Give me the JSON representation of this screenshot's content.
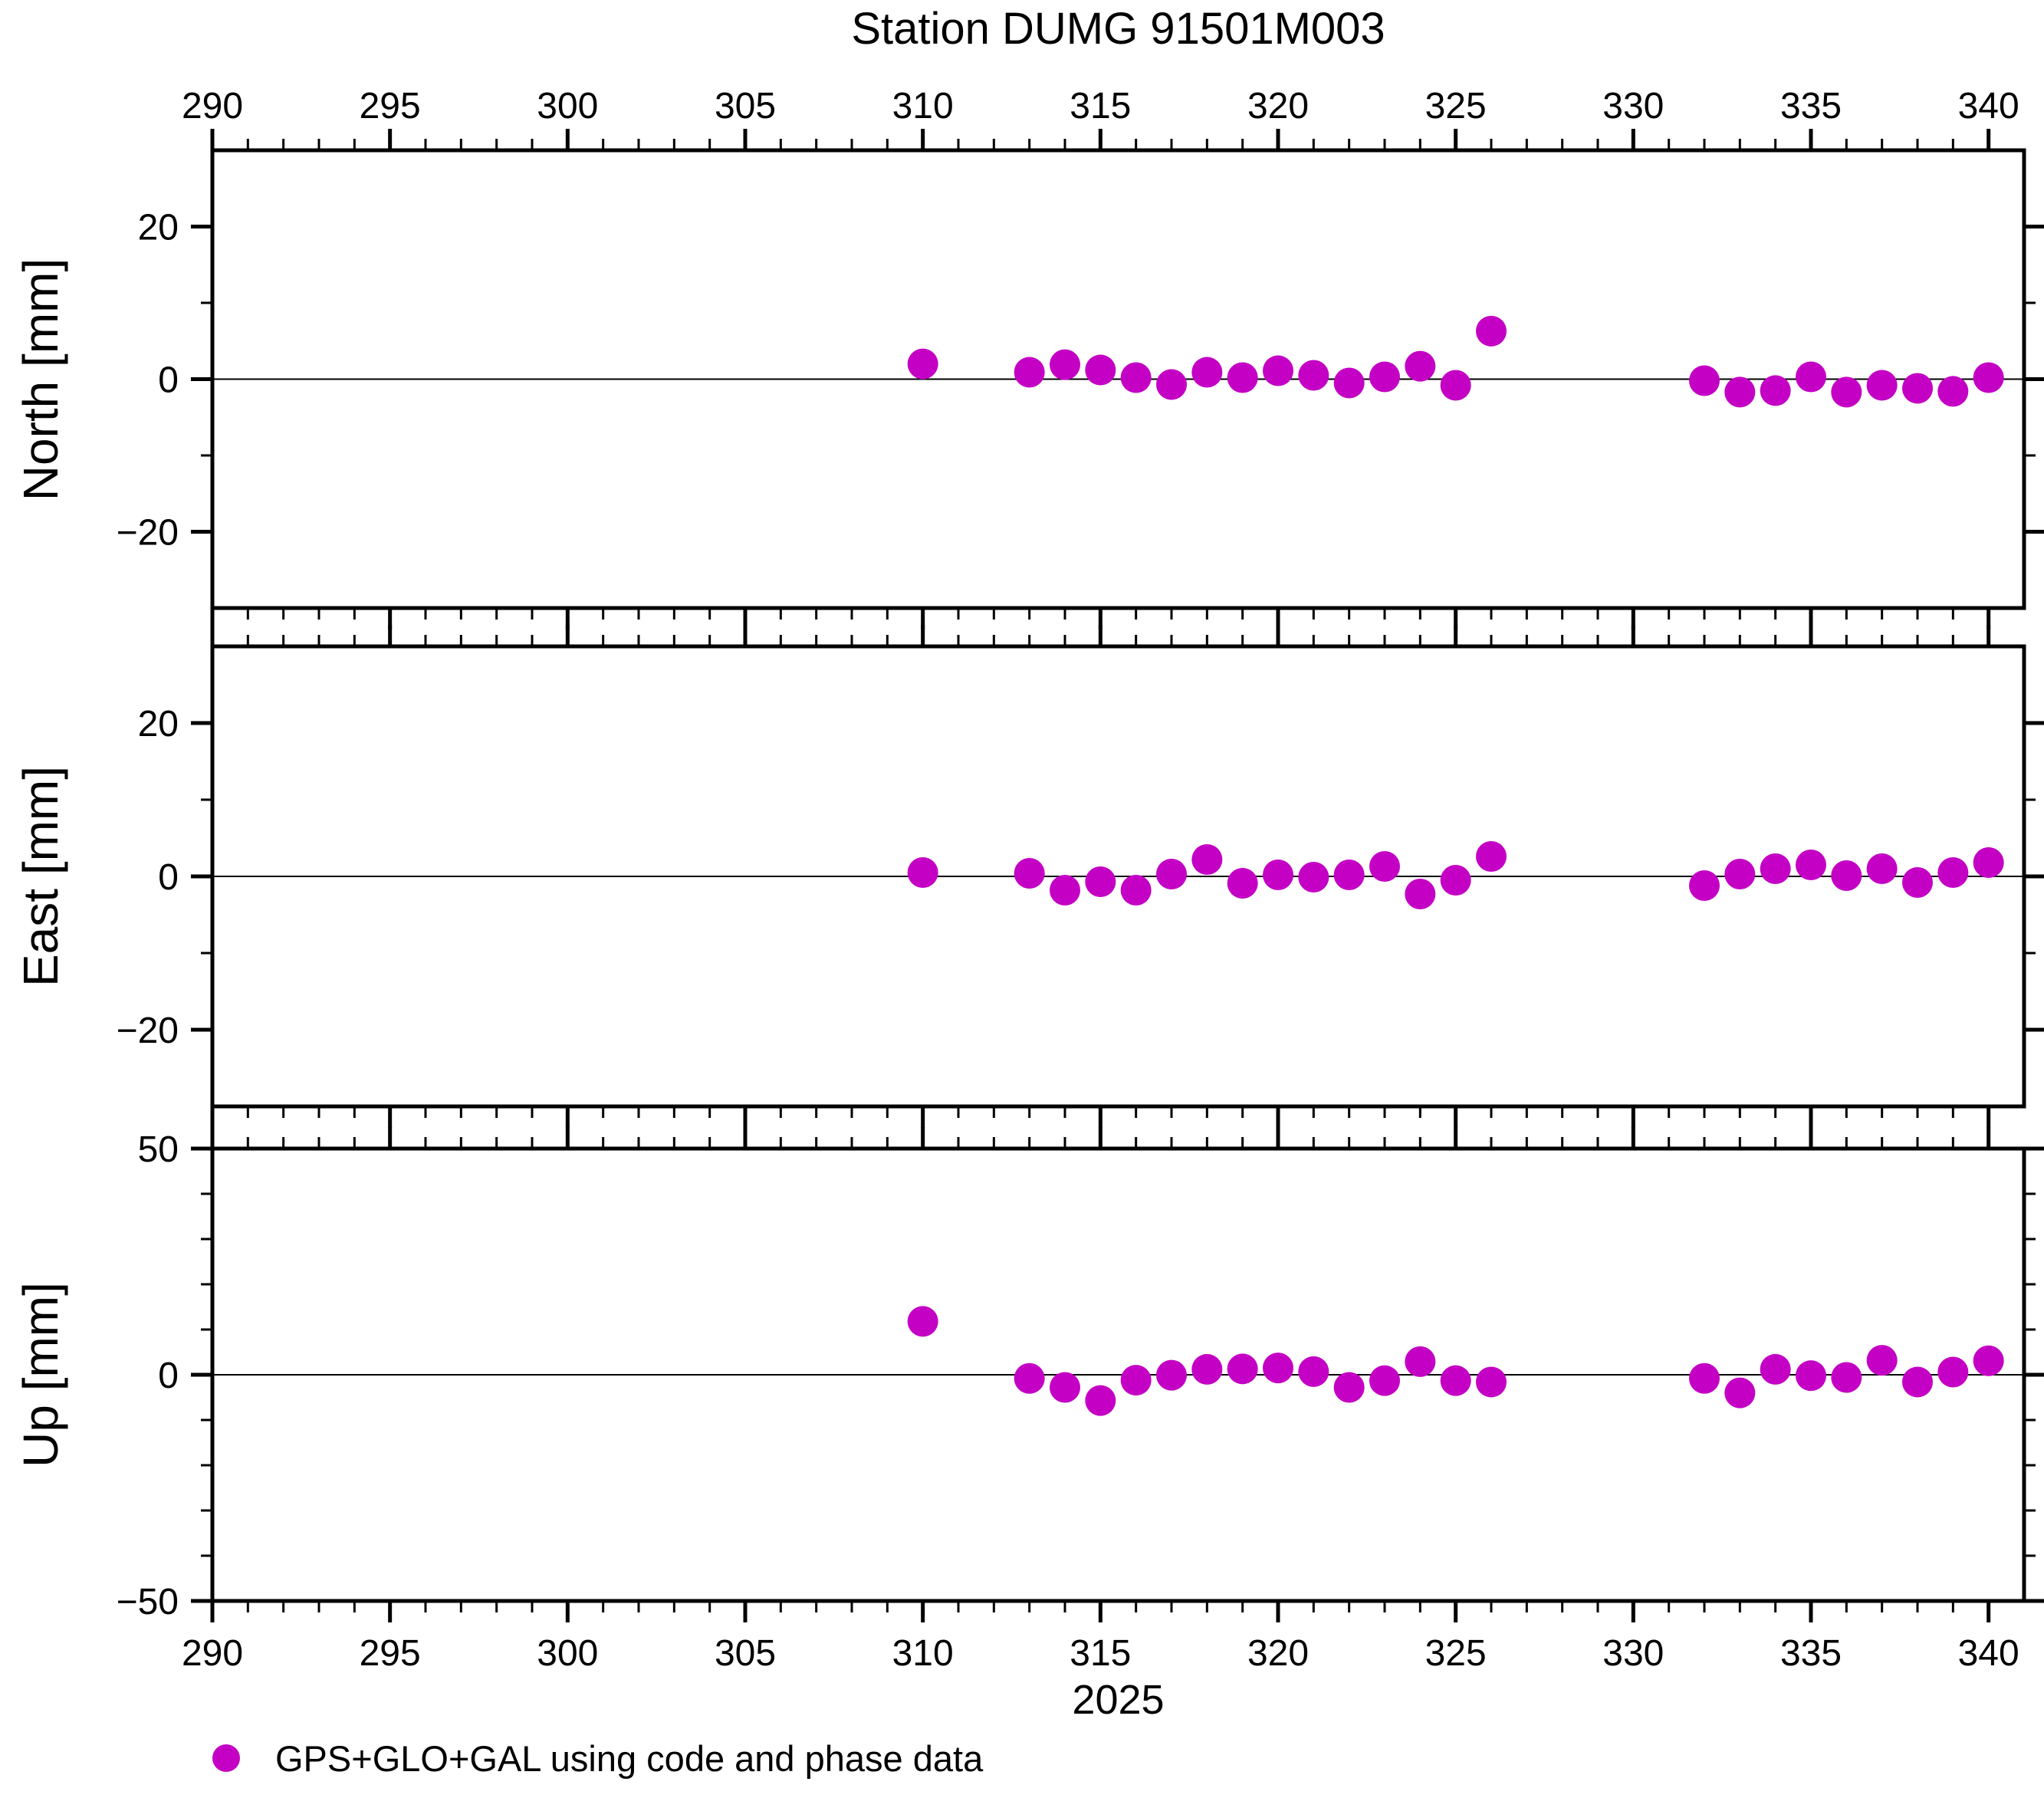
{
  "title": "Station DUMG 91501M003",
  "year_label": "2025",
  "legend": {
    "marker_color": "#C400C4",
    "label": "GPS+GLO+GAL using code and phase data"
  },
  "chart_data": {
    "type": "scatter",
    "title": "Station DUMG 91501M003",
    "xlabel": "2025",
    "x_units": "day of year",
    "xlim": [
      290,
      341
    ],
    "x_major_ticks": [
      290,
      295,
      300,
      305,
      310,
      315,
      320,
      325,
      330,
      335,
      340
    ],
    "x_minor_tick_step": 1,
    "grid": "zero-line-only",
    "legend_position": "bottom-left",
    "marker": {
      "shape": "circle",
      "color": "#C400C4",
      "radius_px": 20
    },
    "x": [
      310,
      313,
      314,
      315,
      316,
      317,
      318,
      319,
      320,
      321,
      322,
      323,
      324,
      325,
      326,
      332,
      333,
      334,
      335,
      336,
      337,
      338,
      339,
      340
    ],
    "panels": [
      {
        "ylabel": "North [mm]",
        "ylim": [
          -30,
          30
        ],
        "y_major_ticks": [
          -20,
          0,
          20
        ],
        "y_minor_tick_step": 10,
        "series_name": "GPS+GLO+GAL using code and phase data",
        "values": [
          2.0,
          0.9,
          1.9,
          1.2,
          0.2,
          -0.7,
          0.9,
          0.2,
          1.1,
          0.5,
          -0.5,
          0.3,
          1.7,
          -0.8,
          6.3,
          -0.2,
          -1.7,
          -1.5,
          0.3,
          -1.7,
          -0.8,
          -1.2,
          -1.6,
          0.2
        ]
      },
      {
        "ylabel": "East [mm]",
        "ylim": [
          -30,
          30
        ],
        "y_major_ticks": [
          -20,
          0,
          20
        ],
        "y_minor_tick_step": 10,
        "series_name": "GPS+GLO+GAL using code and phase data",
        "values": [
          0.5,
          0.4,
          -1.8,
          -0.7,
          -1.8,
          0.3,
          2.2,
          -0.9,
          0.2,
          -0.1,
          0.2,
          1.3,
          -2.3,
          -0.5,
          2.6,
          -1.2,
          0.3,
          1.0,
          1.5,
          0.1,
          1.0,
          -0.8,
          0.5,
          1.8
        ]
      },
      {
        "ylabel": "Up [mm]",
        "ylim": [
          -50,
          50
        ],
        "y_major_ticks": [
          -50,
          0,
          50
        ],
        "y_minor_tick_step": 10,
        "series_name": "GPS+GLO+GAL using code and phase data",
        "values": [
          11.8,
          -0.8,
          -2.8,
          -5.7,
          -1.2,
          -0.1,
          1.2,
          1.3,
          1.5,
          0.7,
          -2.8,
          -1.3,
          2.9,
          -1.3,
          -1.6,
          -0.8,
          -4.0,
          1.2,
          -0.2,
          -0.6,
          3.2,
          -1.6,
          0.6,
          3.1
        ]
      }
    ]
  }
}
